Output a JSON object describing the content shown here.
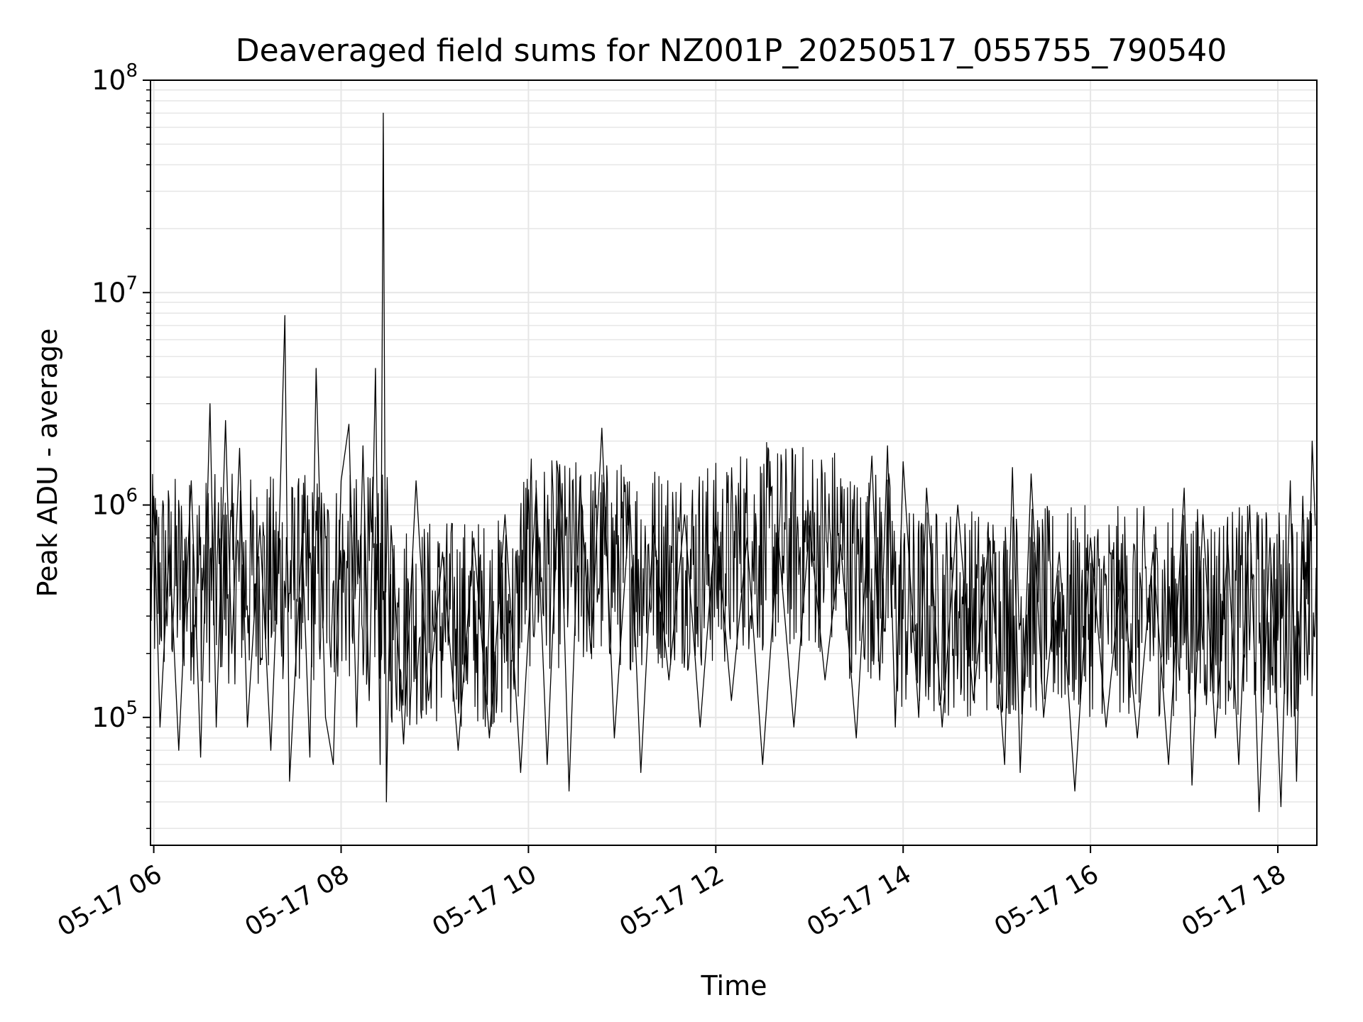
{
  "chart_data": {
    "type": "line",
    "title": "Deaveraged field sums for NZ001P_20250517_055755_790540",
    "xlabel": "Time",
    "ylabel": "Peak ADU - average",
    "yscale": "log",
    "ylim": [
      25000,
      100000000
    ],
    "xlim": [
      "2025-05-17T05:57:55",
      "2025-05-17T18:25:00"
    ],
    "grid": true,
    "line_color": "#000000",
    "grid_color": "#e6e6e6",
    "y_ticks": [
      {
        "base": "10",
        "exp": "5",
        "value": 100000
      },
      {
        "base": "10",
        "exp": "6",
        "value": 1000000
      },
      {
        "base": "10",
        "exp": "7",
        "value": 10000000
      },
      {
        "base": "10",
        "exp": "8",
        "value": 100000000
      }
    ],
    "x_ticks": [
      {
        "label": "05-17 06",
        "value": "2025-05-17T06:00:00"
      },
      {
        "label": "05-17 08",
        "value": "2025-05-17T08:00:00"
      },
      {
        "label": "05-17 10",
        "value": "2025-05-17T10:00:00"
      },
      {
        "label": "05-17 12",
        "value": "2025-05-17T12:00:00"
      },
      {
        "label": "05-17 14",
        "value": "2025-05-17T14:00:00"
      },
      {
        "label": "05-17 16",
        "value": "2025-05-17T16:00:00"
      },
      {
        "label": "05-17 18",
        "value": "2025-05-17T18:00:00"
      }
    ],
    "series": [
      {
        "points": [
          [
            "2025-05-17T05:58:00",
            300000
          ],
          [
            "2025-05-17T06:00:00",
            1100000
          ],
          [
            "2025-05-17T06:04:00",
            90000
          ],
          [
            "2025-05-17T06:10:00",
            650000
          ],
          [
            "2025-05-17T06:16:00",
            70000
          ],
          [
            "2025-05-17T06:24:00",
            1300000
          ],
          [
            "2025-05-17T06:30:00",
            65000
          ],
          [
            "2025-05-17T06:36:00",
            3000000
          ],
          [
            "2025-05-17T06:40:00",
            90000
          ],
          [
            "2025-05-17T06:46:00",
            2500000
          ],
          [
            "2025-05-17T06:50:00",
            200000
          ],
          [
            "2025-05-17T06:55:00",
            1850000
          ],
          [
            "2025-05-17T07:00:00",
            90000
          ],
          [
            "2025-05-17T07:08:00",
            800000
          ],
          [
            "2025-05-17T07:15:00",
            70000
          ],
          [
            "2025-05-17T07:20:00",
            600000
          ],
          [
            "2025-05-17T07:24:00",
            7800000
          ],
          [
            "2025-05-17T07:27:00",
            50000
          ],
          [
            "2025-05-17T07:35:00",
            700000
          ],
          [
            "2025-05-17T07:40:00",
            65000
          ],
          [
            "2025-05-17T07:44:00",
            4400000
          ],
          [
            "2025-05-17T07:50:00",
            100000
          ],
          [
            "2025-05-17T07:55:00",
            60000
          ],
          [
            "2025-05-17T08:00:00",
            1300000
          ],
          [
            "2025-05-17T08:05:00",
            2400000
          ],
          [
            "2025-05-17T08:10:00",
            90000
          ],
          [
            "2025-05-17T08:14:00",
            1900000
          ],
          [
            "2025-05-17T08:18:00",
            120000
          ],
          [
            "2025-05-17T08:22:00",
            4400000
          ],
          [
            "2025-05-17T08:25:00",
            60000
          ],
          [
            "2025-05-17T08:27:00",
            70000000
          ],
          [
            "2025-05-17T08:29:00",
            40000
          ],
          [
            "2025-05-17T08:32:00",
            800000
          ],
          [
            "2025-05-17T08:40:00",
            75000
          ],
          [
            "2025-05-17T08:48:00",
            1300000
          ],
          [
            "2025-05-17T08:56:00",
            120000
          ],
          [
            "2025-05-17T09:05:00",
            600000
          ],
          [
            "2025-05-17T09:15:00",
            70000
          ],
          [
            "2025-05-17T09:25:00",
            700000
          ],
          [
            "2025-05-17T09:35:00",
            80000
          ],
          [
            "2025-05-17T09:45:00",
            900000
          ],
          [
            "2025-05-17T09:55:00",
            55000
          ],
          [
            "2025-05-17T10:05:00",
            1200000
          ],
          [
            "2025-05-17T10:12:00",
            60000
          ],
          [
            "2025-05-17T10:20:00",
            1550000
          ],
          [
            "2025-05-17T10:26:00",
            45000
          ],
          [
            "2025-05-17T10:33:00",
            1300000
          ],
          [
            "2025-05-17T10:40:00",
            200000
          ],
          [
            "2025-05-17T10:47:00",
            2300000
          ],
          [
            "2025-05-17T10:55:00",
            80000
          ],
          [
            "2025-05-17T11:05:00",
            1000000
          ],
          [
            "2025-05-17T11:12:00",
            55000
          ],
          [
            "2025-05-17T11:20:00",
            800000
          ],
          [
            "2025-05-17T11:30:00",
            150000
          ],
          [
            "2025-05-17T11:40:00",
            900000
          ],
          [
            "2025-05-17T11:50:00",
            90000
          ],
          [
            "2025-05-17T12:00:00",
            850000
          ],
          [
            "2025-05-17T12:10:00",
            120000
          ],
          [
            "2025-05-17T12:20:00",
            700000
          ],
          [
            "2025-05-17T12:30:00",
            60000
          ],
          [
            "2025-05-17T12:40:00",
            700000
          ],
          [
            "2025-05-17T12:50:00",
            90000
          ],
          [
            "2025-05-17T13:00:00",
            800000
          ],
          [
            "2025-05-17T13:10:00",
            150000
          ],
          [
            "2025-05-17T13:20:00",
            650000
          ],
          [
            "2025-05-17T13:30:00",
            80000
          ],
          [
            "2025-05-17T13:40:00",
            1700000
          ],
          [
            "2025-05-17T13:45:00",
            150000
          ],
          [
            "2025-05-17T13:50:00",
            1900000
          ],
          [
            "2025-05-17T13:55:00",
            90000
          ],
          [
            "2025-05-17T14:00:00",
            1600000
          ],
          [
            "2025-05-17T14:10:00",
            100000
          ],
          [
            "2025-05-17T14:15:00",
            1200000
          ],
          [
            "2025-05-17T14:25:00",
            90000
          ],
          [
            "2025-05-17T14:35:00",
            1000000
          ],
          [
            "2025-05-17T14:45:00",
            120000
          ],
          [
            "2025-05-17T14:55:00",
            700000
          ],
          [
            "2025-05-17T15:05:00",
            60000
          ],
          [
            "2025-05-17T15:10:00",
            1500000
          ],
          [
            "2025-05-17T15:15:00",
            55000
          ],
          [
            "2025-05-17T15:22:00",
            1400000
          ],
          [
            "2025-05-17T15:30:00",
            100000
          ],
          [
            "2025-05-17T15:40:00",
            600000
          ],
          [
            "2025-05-17T15:50:00",
            45000
          ],
          [
            "2025-05-17T16:00:00",
            700000
          ],
          [
            "2025-05-17T16:10:00",
            90000
          ],
          [
            "2025-05-17T16:20:00",
            500000
          ],
          [
            "2025-05-17T16:30:00",
            80000
          ],
          [
            "2025-05-17T16:40:00",
            600000
          ],
          [
            "2025-05-17T16:50:00",
            60000
          ],
          [
            "2025-05-17T17:00:00",
            1200000
          ],
          [
            "2025-05-17T17:05:00",
            48000
          ],
          [
            "2025-05-17T17:12:00",
            900000
          ],
          [
            "2025-05-17T17:20:00",
            80000
          ],
          [
            "2025-05-17T17:28:00",
            650000
          ],
          [
            "2025-05-17T17:35:00",
            60000
          ],
          [
            "2025-05-17T17:42:00",
            1000000
          ],
          [
            "2025-05-17T17:48:00",
            36000
          ],
          [
            "2025-05-17T17:55:00",
            700000
          ],
          [
            "2025-05-17T18:02:00",
            38000
          ],
          [
            "2025-05-17T18:08:00",
            1300000
          ],
          [
            "2025-05-17T18:12:00",
            50000
          ],
          [
            "2025-05-17T18:16:00",
            1100000
          ],
          [
            "2025-05-17T18:19:00",
            150000
          ],
          [
            "2025-05-17T18:22:00",
            2000000
          ],
          [
            "2025-05-17T18:24:00",
            800000
          ]
        ]
      }
    ]
  }
}
